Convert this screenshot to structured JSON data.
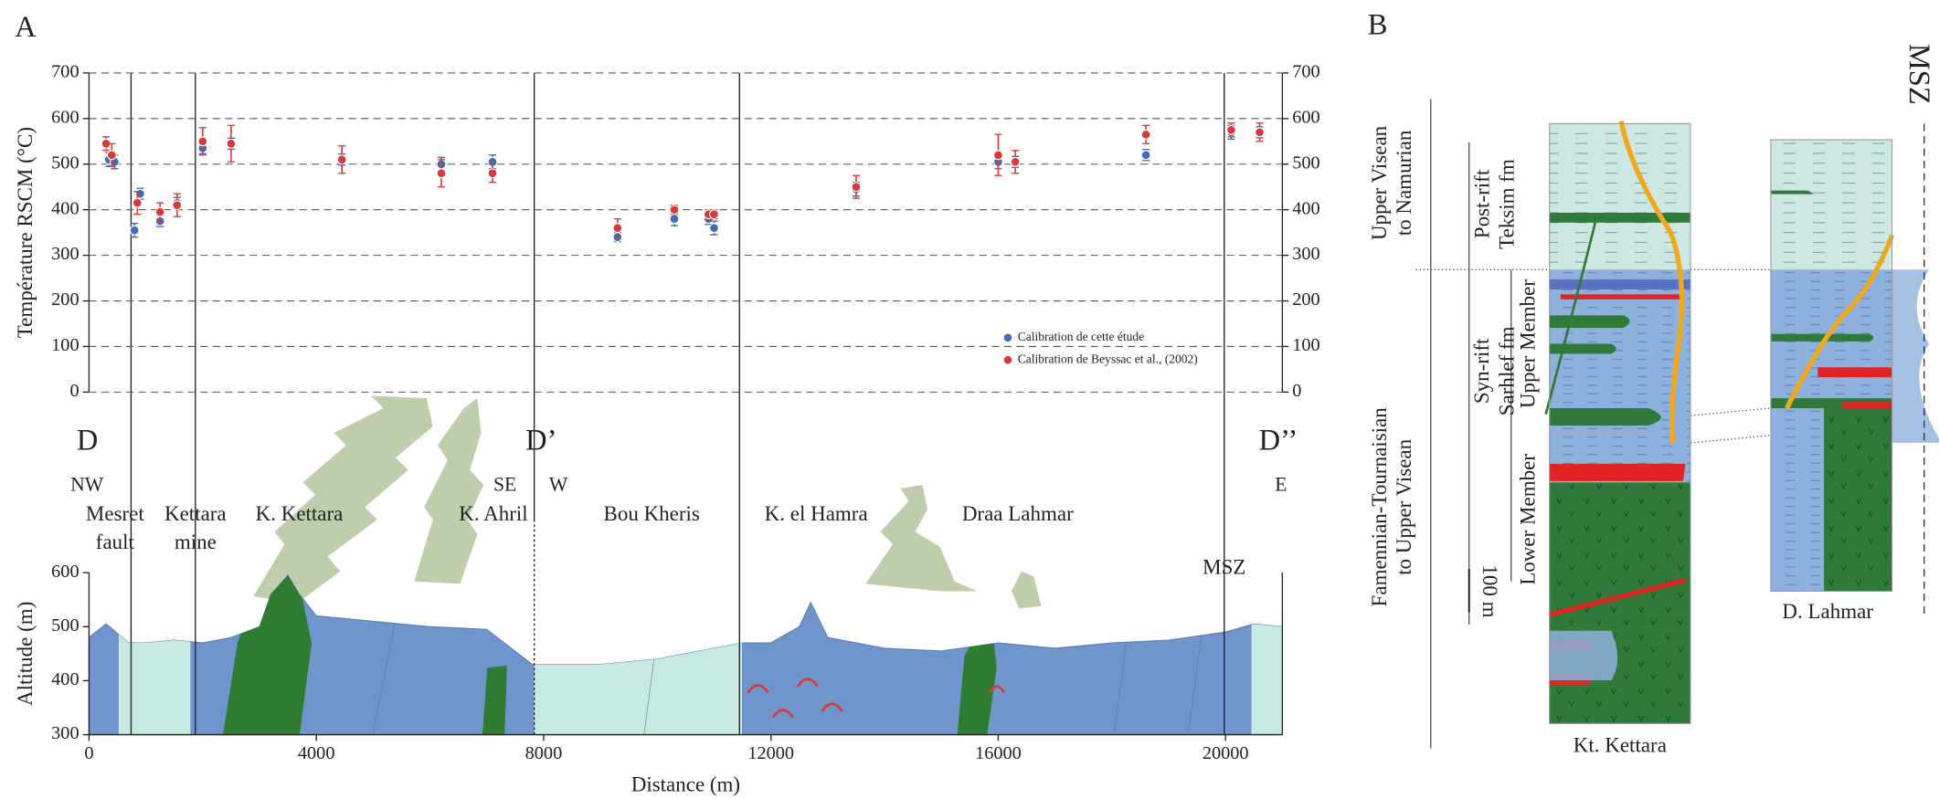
{
  "panel_a_label": "A",
  "chart_data": [
    {
      "type": "scatter",
      "ylabel": "Température RSCM (°C)",
      "xlim": [
        0,
        21000
      ],
      "ylim": [
        0,
        700
      ],
      "yticks": [
        0,
        100,
        200,
        300,
        400,
        500,
        600,
        700
      ],
      "grid": true,
      "mirror_y_axis": true,
      "legend": "lower right",
      "series": [
        {
          "name": "Calibration de cette étude",
          "color": "#3f6db3",
          "x": [
            350,
            450,
            800,
            900,
            1250,
            1550,
            2000,
            2500,
            4450,
            6200,
            7100,
            9300,
            10300,
            10900,
            11000,
            13500,
            16000,
            16300,
            18600,
            20100,
            20600
          ],
          "values": [
            510,
            505,
            355,
            435,
            375,
            415,
            535,
            545,
            510,
            500,
            505,
            340,
            380,
            380,
            360,
            445,
            505,
            505,
            520,
            570,
            570
          ],
          "errors": [
            15,
            15,
            15,
            12,
            12,
            12,
            12,
            12,
            12,
            15,
            15,
            10,
            15,
            12,
            15,
            15,
            15,
            12,
            12,
            15,
            12
          ]
        },
        {
          "name": "Calibration de Beyssac et al., (2002)",
          "color": "#d63a3a",
          "x": [
            300,
            400,
            850,
            1250,
            1550,
            2000,
            2500,
            4450,
            6200,
            7100,
            9300,
            10300,
            10900,
            11000,
            13500,
            16000,
            16300,
            18600,
            20100,
            20600
          ],
          "values": [
            545,
            520,
            415,
            395,
            410,
            550,
            545,
            510,
            480,
            480,
            360,
            400,
            390,
            390,
            450,
            520,
            505,
            565,
            575,
            570
          ],
          "errors": [
            15,
            25,
            25,
            20,
            25,
            30,
            40,
            30,
            30,
            20,
            20,
            10,
            10,
            10,
            25,
            45,
            25,
            20,
            15,
            20
          ]
        }
      ]
    },
    {
      "type": "area",
      "xlabel": "Distance (m)",
      "ylabel": "Altitude (m)",
      "xlim": [
        0,
        21000
      ],
      "ylim": [
        300,
        600
      ],
      "xticks": [
        0,
        4000,
        8000,
        12000,
        16000,
        20000
      ],
      "yticks": [
        300,
        400,
        500,
        600
      ],
      "series": [
        {
          "color": "#6f95cc",
          "x": [
            0,
            300,
            700,
            1000,
            1500,
            2000,
            2500,
            3000,
            3200,
            3500,
            3700,
            4000,
            5000,
            6000,
            7000,
            7800,
            8000,
            9000,
            10000,
            11000,
            11500,
            12000,
            12500,
            12700,
            13000,
            14000,
            15000,
            16000,
            17000,
            18000,
            19000,
            20000,
            20500,
            21000
          ],
          "values": [
            480,
            505,
            470,
            470,
            475,
            470,
            480,
            500,
            560,
            595,
            560,
            520,
            510,
            500,
            495,
            430,
            430,
            430,
            440,
            460,
            470,
            470,
            500,
            545,
            480,
            460,
            455,
            470,
            460,
            470,
            475,
            490,
            505,
            500
          ]
        }
      ]
    }
  ],
  "section": {
    "end_labels": [
      "D",
      "D’",
      "D’’"
    ],
    "directions": [
      "NW",
      "SE",
      "W",
      "E"
    ],
    "localities": {
      "mesret_fault": [
        "Mesret",
        "fault"
      ],
      "kettara_mine": [
        "Kettara",
        "mine"
      ],
      "k_kettara": "K. Kettara",
      "k_ahril": "K. Ahril",
      "bou_kheris": "Bou Kheris",
      "k_el_hamra": "K. el Hamra",
      "draa_lahmar": "Draa Lahmar",
      "msz": "MSZ"
    }
  },
  "panel_b": {
    "label": "B",
    "ages": [
      [
        "Upper Visean",
        "to Namurian"
      ],
      [
        "Famennian-Tournaisian",
        "to Upper Visean"
      ]
    ],
    "formations": [
      [
        "Post-rift",
        "Teksim fm"
      ],
      [
        "Syn-rift",
        "Sarhlef fm"
      ]
    ],
    "members": [
      "Upper Member",
      "Lower Member"
    ],
    "scale": "100 m",
    "columns": [
      "Kt. Kettara",
      "D. Lahmar"
    ],
    "fault": "MSZ"
  }
}
